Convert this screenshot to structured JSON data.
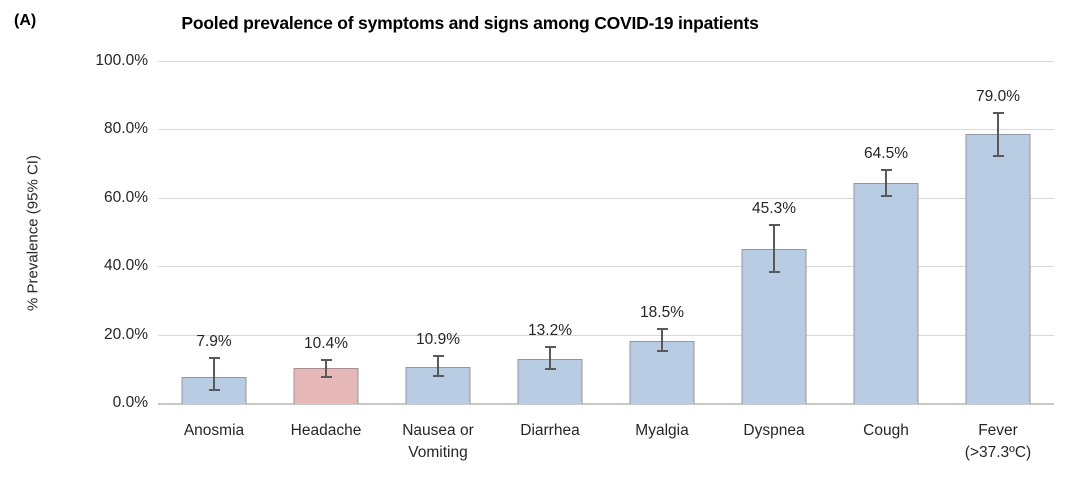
{
  "figure": {
    "panel_label": "(A)"
  },
  "chart_data": {
    "type": "bar",
    "title": "Pooled prevalence of symptoms and signs among COVID-19 inpatients",
    "xlabel": "",
    "ylabel": "% Prevalence (95% CI)",
    "ylim": [
      0,
      100
    ],
    "grid": true,
    "legend_position": "none",
    "yticks": [
      {
        "value": 0,
        "label": "0.0%"
      },
      {
        "value": 20,
        "label": "20.0%"
      },
      {
        "value": 40,
        "label": "40.0%"
      },
      {
        "value": 60,
        "label": "60.0%"
      },
      {
        "value": 80,
        "label": "80.0%"
      },
      {
        "value": 100,
        "label": "100.0%"
      }
    ],
    "categories": [
      "Anosmia",
      "Headache",
      "Nausea or Vomiting",
      "Diarrhea",
      "Myalgia",
      "Dyspnea",
      "Cough",
      "Fever (>37.3ºC)"
    ],
    "values": [
      7.9,
      10.4,
      10.9,
      13.2,
      18.5,
      45.3,
      64.5,
      79.0
    ],
    "bars": [
      {
        "category_display": "Anosmia",
        "value": 7.9,
        "value_label": "7.9%",
        "ci_low": 4.1,
        "ci_high": 13.4,
        "highlighted": false
      },
      {
        "category_display": "Headache",
        "value": 10.4,
        "value_label": "10.4%",
        "ci_low": 7.8,
        "ci_high": 13.0,
        "highlighted": true
      },
      {
        "category_display": "Nausea or\nVomiting",
        "value": 10.9,
        "value_label": "10.9%",
        "ci_low": 8.1,
        "ci_high": 14.0,
        "highlighted": false
      },
      {
        "category_display": "Diarrhea",
        "value": 13.2,
        "value_label": "13.2%",
        "ci_low": 10.2,
        "ci_high": 16.8,
        "highlighted": false
      },
      {
        "category_display": "Myalgia",
        "value": 18.5,
        "value_label": "18.5%",
        "ci_low": 15.6,
        "ci_high": 21.9,
        "highlighted": false
      },
      {
        "category_display": "Dyspnea",
        "value": 45.3,
        "value_label": "45.3%",
        "ci_low": 38.7,
        "ci_high": 52.4,
        "highlighted": false
      },
      {
        "category_display": "Cough",
        "value": 64.5,
        "value_label": "64.5%",
        "ci_low": 60.9,
        "ci_high": 68.5,
        "highlighted": false
      },
      {
        "category_display": "Fever\n(>37.3ºC)",
        "value": 79.0,
        "value_label": "79.0%",
        "ci_low": 72.4,
        "ci_high": 85.0,
        "highlighted": false
      }
    ],
    "colors": {
      "bar_fill_default": "#b8cce4",
      "bar_fill_highlight": "#e6b9b8",
      "bar_border": "#969696",
      "error_bar": "#595959",
      "gridline": "#d9d9d9",
      "axis_line": "#c9c9c9",
      "text": "#262626",
      "title_text": "#000000"
    }
  }
}
